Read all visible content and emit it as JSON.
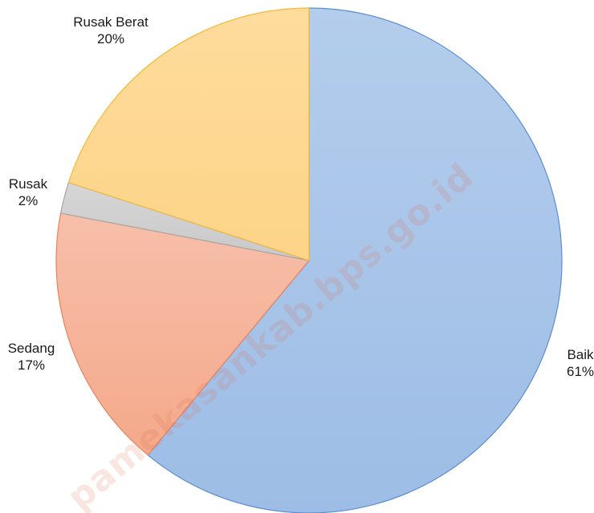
{
  "chart_data": {
    "type": "pie",
    "title": "",
    "start_angle_deg": 0,
    "direction": "clockwise",
    "slices": [
      {
        "label": "Baik",
        "value": 61,
        "value_label": "61%",
        "color": "#9dbde6",
        "color_light": "#b4cdec",
        "stroke": "#5b8fd0"
      },
      {
        "label": "Sedang",
        "value": 17,
        "value_label": "17%",
        "color": "#f4a98a",
        "color_light": "#f7bfaa",
        "stroke": "#e8835c"
      },
      {
        "label": "Rusak",
        "value": 2,
        "value_label": "2%",
        "color": "#c9c9c9",
        "color_light": "#d6d6d6",
        "stroke": "#a6a6a6"
      },
      {
        "label": "Rusak Berat",
        "value": 20,
        "value_label": "20%",
        "color": "#fdd488",
        "color_light": "#fedc9c",
        "stroke": "#f2b83a"
      }
    ],
    "legend": "none"
  },
  "watermark": {
    "text": "pamekasankab.bps.go.id",
    "color": "#e06a4a"
  }
}
